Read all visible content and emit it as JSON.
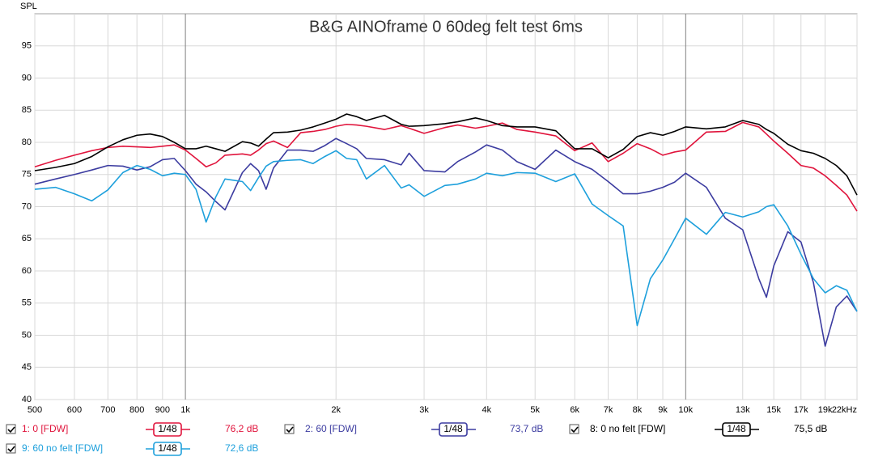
{
  "chart_data": {
    "type": "line",
    "title": "B&G AINOframe 0 60deg felt test 6ms",
    "y_label": "SPL",
    "x_scale": "log",
    "grid": true,
    "xlim": [
      500,
      22000
    ],
    "ylim": [
      40,
      100
    ],
    "xticks": [
      500,
      600,
      700,
      800,
      900,
      {
        "value": 1000,
        "label": "1k"
      },
      {
        "value": 2000,
        "label": "2k"
      },
      {
        "value": 3000,
        "label": "3k"
      },
      {
        "value": 4000,
        "label": "4k"
      },
      {
        "value": 5000,
        "label": "5k"
      },
      {
        "value": 6000,
        "label": "6k"
      },
      {
        "value": 7000,
        "label": "7k"
      },
      {
        "value": 8000,
        "label": "8k"
      },
      {
        "value": 9000,
        "label": "9k"
      },
      {
        "value": 10000,
        "label": "10k"
      },
      {
        "value": 13000,
        "label": "13k"
      },
      {
        "value": 15000,
        "label": "15k"
      },
      {
        "value": 17000,
        "label": "17k"
      },
      {
        "value": 19000,
        "label": "19k"
      },
      {
        "value": 22000,
        "label": "22kHz"
      }
    ],
    "yticks": [
      40,
      45,
      50,
      55,
      60,
      65,
      70,
      75,
      80,
      85,
      90,
      95
    ],
    "x": [
      500,
      550,
      600,
      650,
      700,
      750,
      800,
      850,
      900,
      950,
      1000,
      1050,
      1100,
      1150,
      1200,
      1300,
      1350,
      1400,
      1450,
      1500,
      1600,
      1700,
      1800,
      1900,
      2000,
      2100,
      2200,
      2300,
      2500,
      2700,
      2800,
      3000,
      3300,
      3500,
      3800,
      4000,
      4300,
      4600,
      5000,
      5500,
      6000,
      6500,
      7000,
      7500,
      8000,
      8500,
      9000,
      9500,
      10000,
      11000,
      12000,
      13000,
      14000,
      14500,
      15000,
      16000,
      17000,
      18000,
      19000,
      20000,
      21000,
      22000
    ],
    "series": [
      {
        "name": "1: 0 [FDW]",
        "color": "#e0143c",
        "smoothing": "1/48",
        "level": "76,2 dB",
        "values": [
          76.2,
          77.2,
          78.0,
          78.7,
          79.2,
          79.4,
          79.3,
          79.2,
          79.4,
          79.6,
          78.8,
          77.5,
          76.2,
          76.8,
          78.0,
          78.2,
          78.0,
          78.8,
          79.8,
          80.2,
          79.2,
          81.5,
          81.7,
          82.0,
          82.5,
          82.8,
          82.7,
          82.5,
          82.0,
          82.6,
          82.2,
          81.4,
          82.3,
          82.7,
          82.2,
          82.5,
          83.0,
          82.0,
          81.6,
          81.0,
          78.7,
          79.9,
          77.0,
          78.3,
          79.8,
          79.0,
          78.0,
          78.5,
          78.8,
          81.6,
          81.7,
          83.1,
          82.4,
          81.3,
          80.2,
          78.3,
          76.4,
          76.0,
          74.8,
          73.3,
          71.8,
          69.3
        ]
      },
      {
        "name": "2: 60 [FDW]",
        "color": "#3c3ca0",
        "smoothing": "1/48",
        "level": "73,7 dB",
        "values": [
          73.5,
          74.3,
          75.0,
          75.7,
          76.4,
          76.3,
          75.7,
          76.2,
          77.3,
          77.5,
          75.6,
          73.5,
          72.3,
          70.8,
          69.5,
          75.3,
          76.7,
          75.6,
          72.7,
          76.0,
          78.8,
          78.8,
          78.6,
          79.5,
          80.6,
          79.8,
          79.0,
          77.5,
          77.3,
          76.5,
          78.3,
          75.6,
          75.4,
          77.0,
          78.5,
          79.6,
          78.8,
          77.0,
          75.8,
          78.8,
          77.0,
          75.8,
          73.9,
          72.0,
          72.0,
          72.4,
          73.0,
          73.8,
          75.2,
          73.0,
          68.2,
          66.4,
          58.8,
          55.9,
          60.8,
          66.1,
          64.5,
          58.2,
          48.3,
          54.4,
          56.1,
          53.7
        ]
      },
      {
        "name": "8: 0 no felt [FDW]",
        "color": "#000000",
        "smoothing": "1/48",
        "level": "75,5 dB",
        "values": [
          75.6,
          76.1,
          76.7,
          77.8,
          79.3,
          80.4,
          81.1,
          81.3,
          80.9,
          80.0,
          79.0,
          79.0,
          79.4,
          79.0,
          78.6,
          80.1,
          79.9,
          79.4,
          80.5,
          81.5,
          81.6,
          81.9,
          82.4,
          83.0,
          83.6,
          84.4,
          84.0,
          83.4,
          84.2,
          82.8,
          82.5,
          82.6,
          82.9,
          83.2,
          83.8,
          83.4,
          82.6,
          82.4,
          82.4,
          81.8,
          79.0,
          79.0,
          77.6,
          78.9,
          80.9,
          81.5,
          81.1,
          81.7,
          82.4,
          82.1,
          82.4,
          83.4,
          82.8,
          82.0,
          81.4,
          79.7,
          78.7,
          78.3,
          77.5,
          76.4,
          74.8,
          71.8
        ]
      },
      {
        "name": "9: 60 no felt [FDW]",
        "color": "#1ea0dc",
        "smoothing": "1/48",
        "level": "72,6 dB",
        "values": [
          72.7,
          73.0,
          72.0,
          70.9,
          72.6,
          75.3,
          76.4,
          75.8,
          74.8,
          75.2,
          75.0,
          72.7,
          67.6,
          71.5,
          74.3,
          73.9,
          72.5,
          74.5,
          76.3,
          77.0,
          77.2,
          77.3,
          76.7,
          77.8,
          78.7,
          77.5,
          77.3,
          74.3,
          76.4,
          72.9,
          73.4,
          71.6,
          73.3,
          73.5,
          74.3,
          75.2,
          74.8,
          75.3,
          75.2,
          73.9,
          75.1,
          70.4,
          68.6,
          67.0,
          51.5,
          58.8,
          61.7,
          65.0,
          68.2,
          65.7,
          69.1,
          68.4,
          69.2,
          70.0,
          70.3,
          67.0,
          62.6,
          58.8,
          56.6,
          57.7,
          57.0,
          53.7
        ]
      }
    ]
  }
}
